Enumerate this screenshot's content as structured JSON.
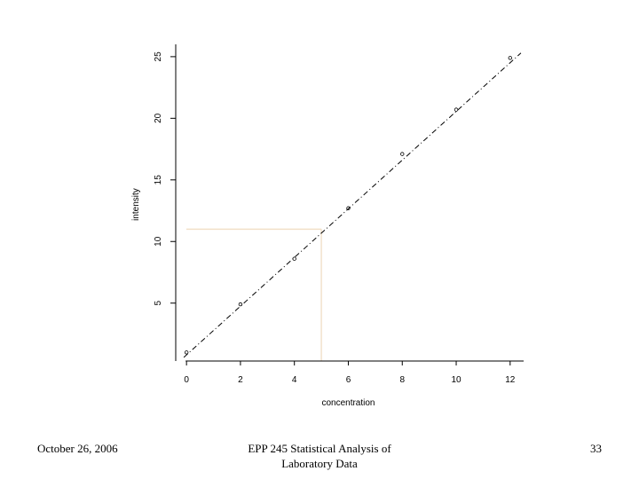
{
  "chart_data": {
    "type": "scatter",
    "title": "",
    "xlabel": "concentration",
    "ylabel": "intensity",
    "xlim": [
      -0.4,
      12.5
    ],
    "ylim": [
      0.3,
      26.0
    ],
    "x_ticks": [
      0,
      2,
      4,
      6,
      8,
      10,
      12
    ],
    "y_ticks": [
      5,
      10,
      15,
      20,
      25
    ],
    "grid": false,
    "series": [
      {
        "points": [
          {
            "x": 0,
            "y": 1.0
          },
          {
            "x": 2,
            "y": 4.9
          },
          {
            "x": 4,
            "y": 8.6
          },
          {
            "x": 6,
            "y": 12.7
          },
          {
            "x": 8,
            "y": 17.1
          },
          {
            "x": 10,
            "y": 20.7
          },
          {
            "x": 12,
            "y": 24.9
          }
        ],
        "marker": "circle",
        "color": "#000000"
      }
    ],
    "fit_line": {
      "style": "dot-dash",
      "color": "#000000",
      "x": [
        -0.1,
        12.4
      ],
      "y": [
        0.6,
        25.3
      ]
    },
    "reference_lines": {
      "color": "#f1e0c8",
      "point": {
        "x": 5,
        "y": 11.0
      }
    }
  },
  "footer": {
    "date": "October 26, 2006",
    "title_line1": "EPP 245 Statistical Analysis of",
    "title_line2": "Laboratory Data",
    "page": "33"
  }
}
